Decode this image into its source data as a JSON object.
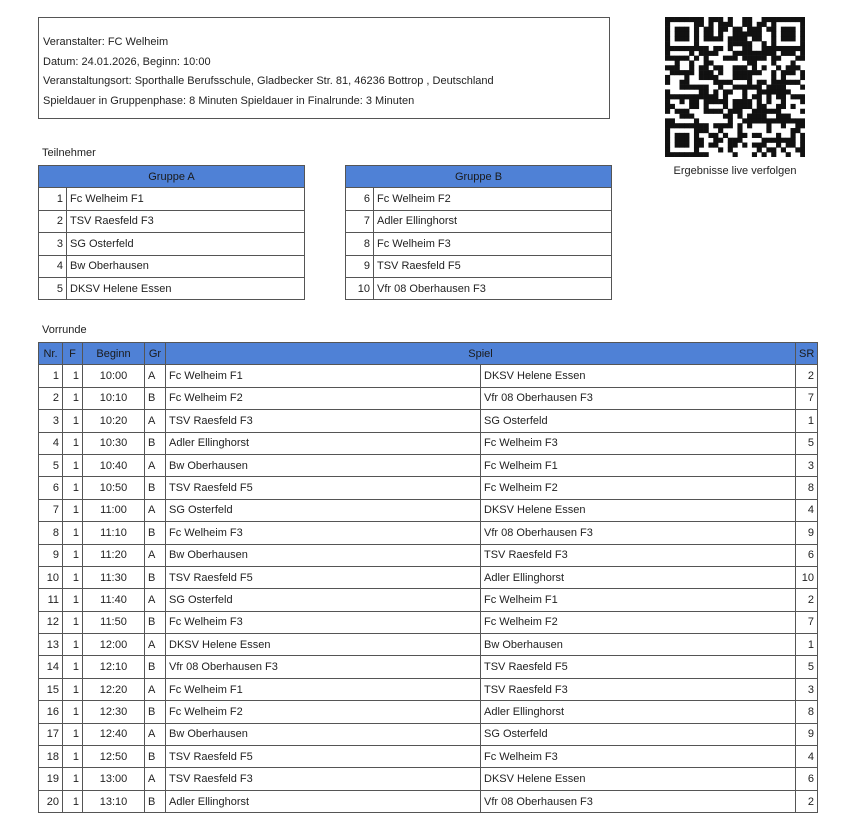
{
  "info": {
    "lines": [
      "Veranstalter: FC Welheim",
      "Datum: 24.01.2026, Beginn: 10:00",
      "Veranstaltungsort: Sporthalle Berufsschule, Gladbecker Str. 81, 46236 Bottrop , Deutschland",
      "Spieldauer in Gruppenphase: 8 Minuten Spieldauer in Finalrunde: 3 Minuten"
    ]
  },
  "qr": {
    "caption": "Ergebnisse live verfolgen"
  },
  "participants": {
    "label": "Teilnehmer",
    "groups": [
      {
        "title": "Gruppe A",
        "teams": [
          [
            1,
            "Fc Welheim F1"
          ],
          [
            2,
            "TSV Raesfeld F3"
          ],
          [
            3,
            "SG Osterfeld"
          ],
          [
            4,
            "Bw Oberhausen"
          ],
          [
            5,
            "DKSV Helene Essen"
          ]
        ]
      },
      {
        "title": "Gruppe B",
        "teams": [
          [
            6,
            "Fc Welheim F2"
          ],
          [
            7,
            "Adler Ellinghorst"
          ],
          [
            8,
            "Fc Welheim F3"
          ],
          [
            9,
            "TSV Raesfeld F5"
          ],
          [
            10,
            "Vfr 08 Oberhausen F3"
          ]
        ]
      }
    ]
  },
  "schedule": {
    "label": "Vorrunde",
    "header": [
      "Nr.",
      "F",
      "Beginn",
      "Gr",
      "Spiel",
      "SR"
    ],
    "rows": [
      [
        1,
        1,
        "10:00",
        "A",
        "Fc Welheim F1",
        "DKSV Helene Essen",
        2
      ],
      [
        2,
        1,
        "10:10",
        "B",
        "Fc Welheim F2",
        "Vfr 08 Oberhausen F3",
        7
      ],
      [
        3,
        1,
        "10:20",
        "A",
        "TSV Raesfeld F3",
        "SG Osterfeld",
        1
      ],
      [
        4,
        1,
        "10:30",
        "B",
        "Adler Ellinghorst",
        "Fc Welheim F3",
        5
      ],
      [
        5,
        1,
        "10:40",
        "A",
        "Bw Oberhausen",
        "Fc Welheim F1",
        3
      ],
      [
        6,
        1,
        "10:50",
        "B",
        "TSV Raesfeld F5",
        "Fc Welheim F2",
        8
      ],
      [
        7,
        1,
        "11:00",
        "A",
        "SG Osterfeld",
        "DKSV Helene Essen",
        4
      ],
      [
        8,
        1,
        "11:10",
        "B",
        "Fc Welheim F3",
        "Vfr 08 Oberhausen F3",
        9
      ],
      [
        9,
        1,
        "11:20",
        "A",
        "Bw Oberhausen",
        "TSV Raesfeld F3",
        6
      ],
      [
        10,
        1,
        "11:30",
        "B",
        "TSV Raesfeld F5",
        "Adler Ellinghorst",
        10
      ],
      [
        11,
        1,
        "11:40",
        "A",
        "SG Osterfeld",
        "Fc Welheim F1",
        2
      ],
      [
        12,
        1,
        "11:50",
        "B",
        "Fc Welheim F3",
        "Fc Welheim F2",
        7
      ],
      [
        13,
        1,
        "12:00",
        "A",
        "DKSV Helene Essen",
        "Bw Oberhausen",
        1
      ],
      [
        14,
        1,
        "12:10",
        "B",
        "Vfr 08 Oberhausen F3",
        "TSV Raesfeld F5",
        5
      ],
      [
        15,
        1,
        "12:20",
        "A",
        "Fc Welheim F1",
        "TSV Raesfeld F3",
        3
      ],
      [
        16,
        1,
        "12:30",
        "B",
        "Fc Welheim F2",
        "Adler Ellinghorst",
        8
      ],
      [
        17,
        1,
        "12:40",
        "A",
        "Bw Oberhausen",
        "SG Osterfeld",
        9
      ],
      [
        18,
        1,
        "12:50",
        "B",
        "TSV Raesfeld F5",
        "Fc Welheim F3",
        4
      ],
      [
        19,
        1,
        "13:00",
        "A",
        "TSV Raesfeld F3",
        "DKSV Helene Essen",
        6
      ],
      [
        20,
        1,
        "13:10",
        "B",
        "Adler Ellinghorst",
        "Vfr 08 Oberhausen F3",
        2
      ]
    ]
  }
}
